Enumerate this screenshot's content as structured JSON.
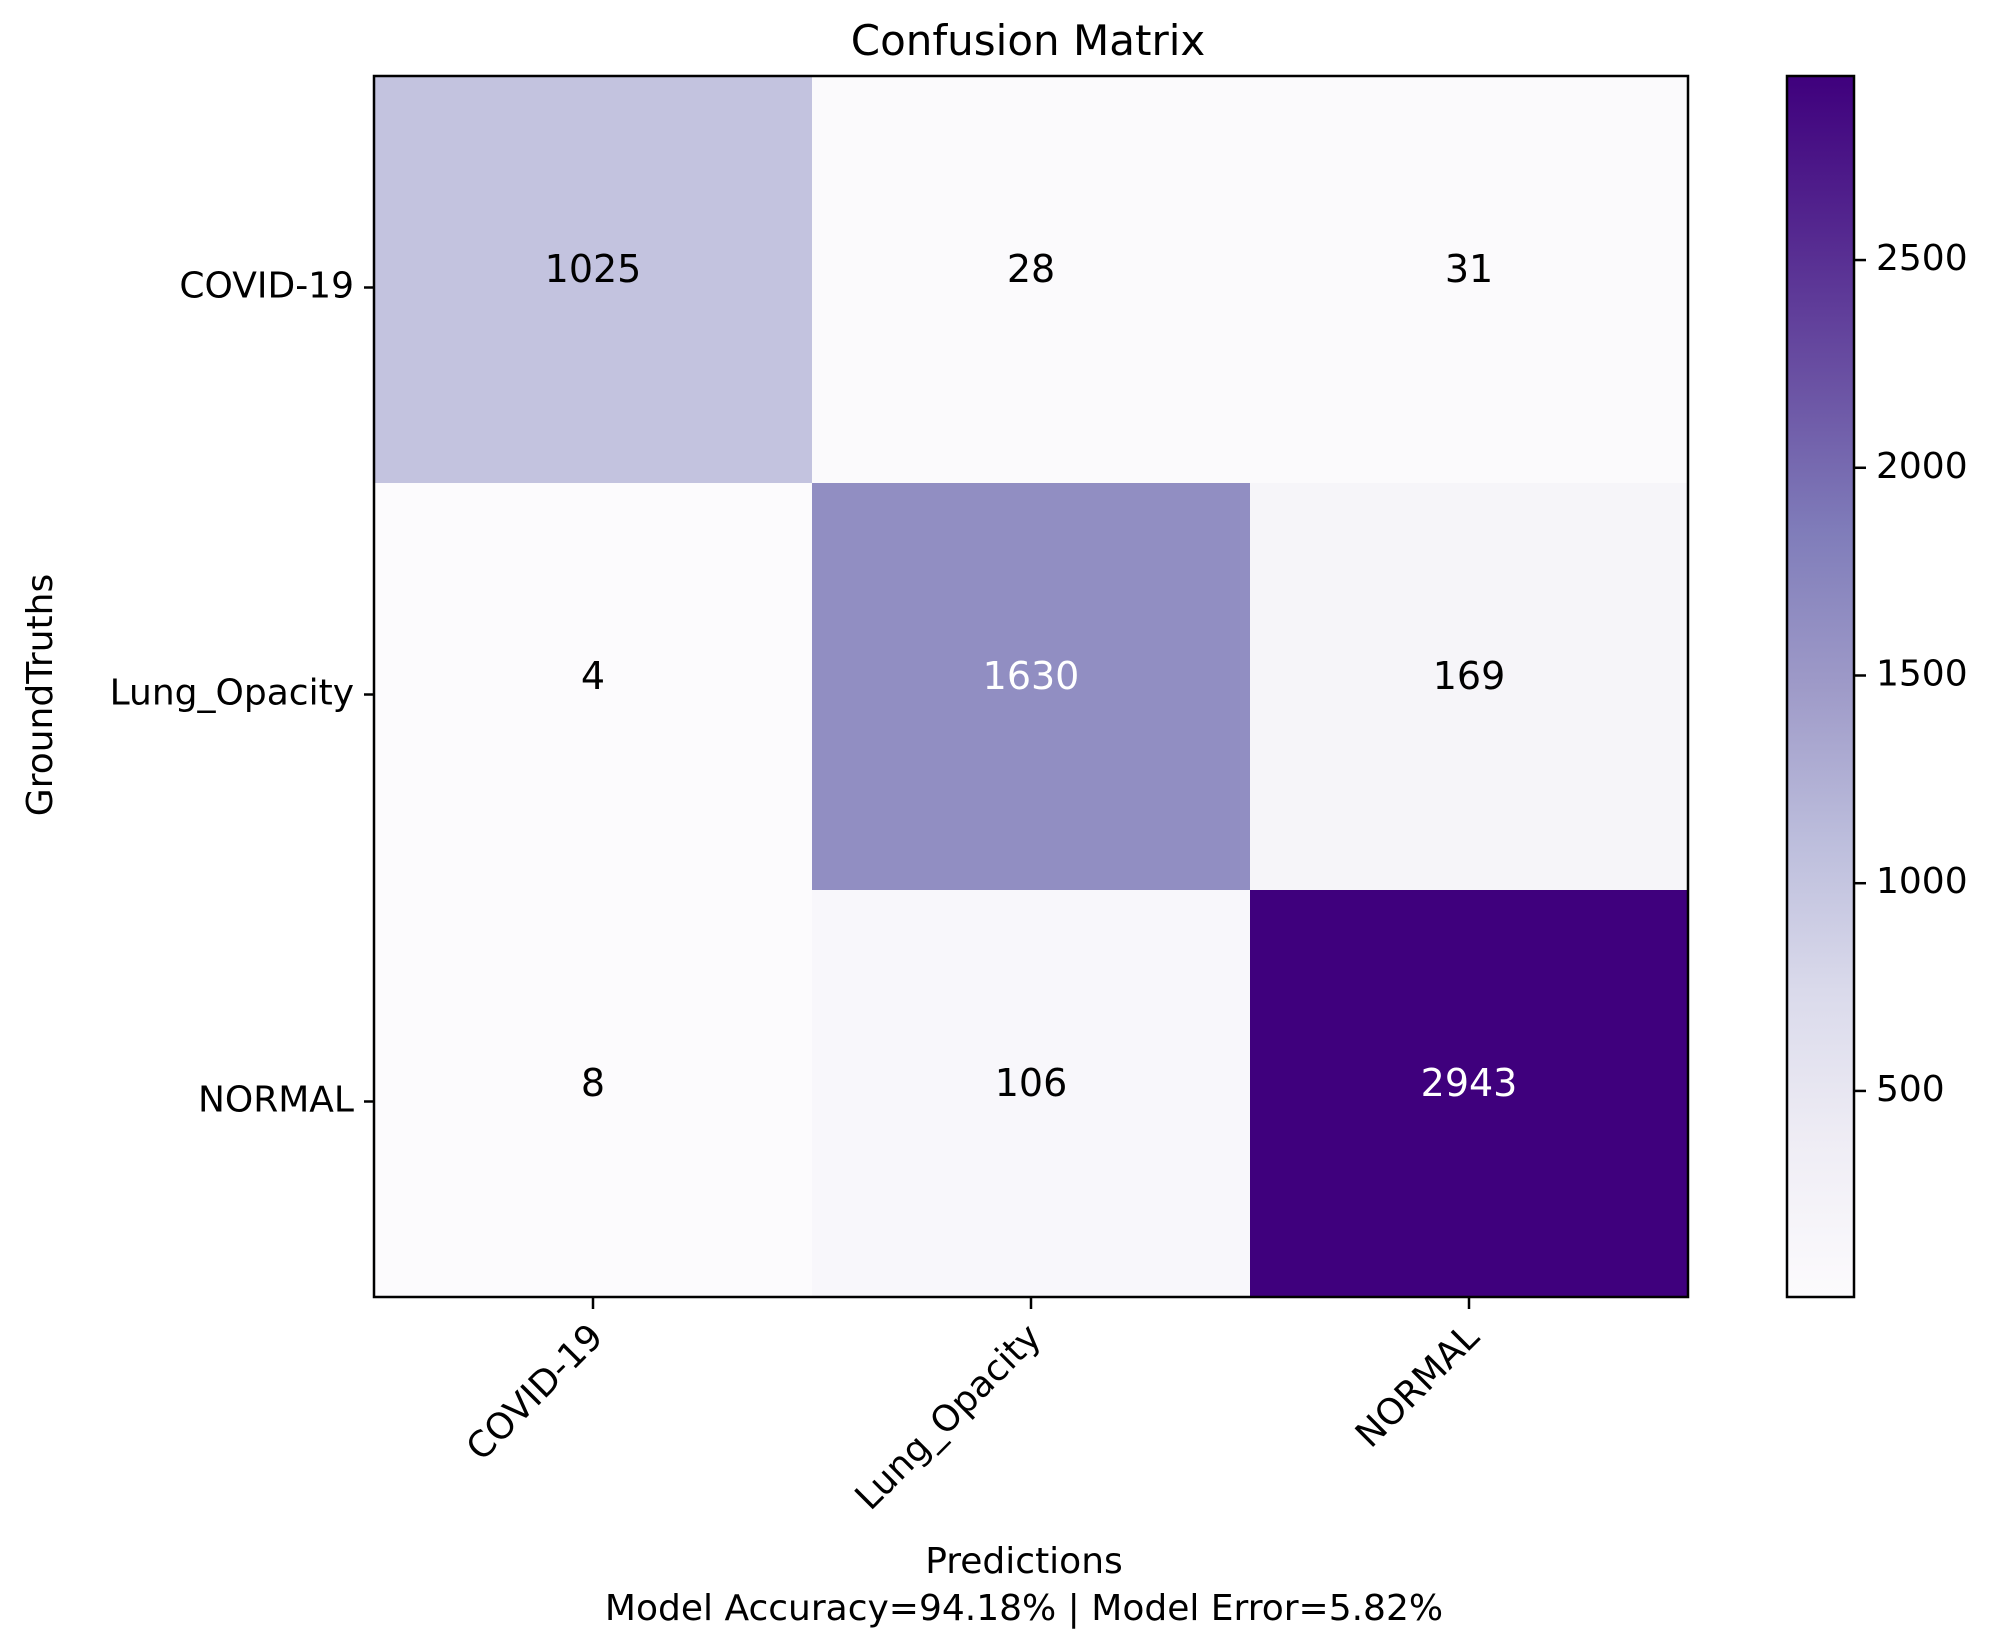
{
  "chart_data": {
    "type": "heatmap",
    "title": "Confusion Matrix",
    "xlabel": "Predictions",
    "ylabel": "GroundTruths",
    "footer": "Model Accuracy=94.18% | Model Error=5.82%",
    "x_categories": [
      "COVID-19",
      "Lung_Opacity",
      "NORMAL"
    ],
    "y_categories": [
      "COVID-19",
      "Lung_Opacity",
      "NORMAL"
    ],
    "matrix": [
      [
        1025,
        28,
        31
      ],
      [
        4,
        1630,
        169
      ],
      [
        8,
        106,
        2943
      ]
    ],
    "colormap": "Purples",
    "colorbar": {
      "ticks": [
        500,
        1000,
        1500,
        2000,
        2500
      ],
      "tick_labels": [
        "500",
        "1000",
        "1500",
        "2000",
        "2500"
      ],
      "min": 4,
      "max": 2943
    },
    "text_color_dark": "#000000",
    "text_color_light": "#ffffff"
  }
}
